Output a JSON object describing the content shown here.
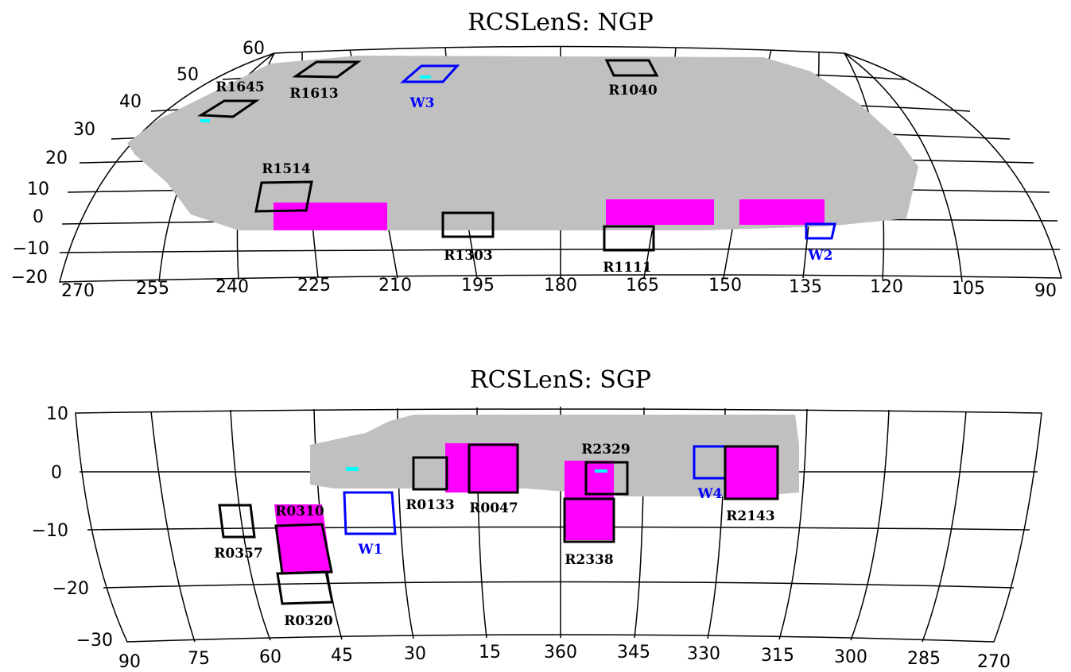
{
  "panels": [
    {
      "title": "RCSLenS: NGP",
      "dec_labels": [
        60,
        50,
        40,
        30,
        20,
        10,
        0,
        -10,
        -20
      ],
      "ra_labels": [
        270,
        255,
        240,
        225,
        210,
        195,
        180,
        165,
        150,
        135,
        120,
        105,
        90
      ],
      "fields": [
        {
          "label": "R1645",
          "color": "black"
        },
        {
          "label": "R1613",
          "color": "black"
        },
        {
          "label": "W3",
          "color": "blue"
        },
        {
          "label": "R1040",
          "color": "black"
        },
        {
          "label": "R1514",
          "color": "black"
        },
        {
          "label": "R1303",
          "color": "black"
        },
        {
          "label": "R1111",
          "color": "black"
        },
        {
          "label": "W2",
          "color": "blue"
        }
      ]
    },
    {
      "title": "RCSLenS: SGP",
      "dec_labels": [
        10,
        0,
        -10,
        -20,
        -30
      ],
      "ra_labels": [
        90,
        75,
        60,
        45,
        30,
        15,
        360,
        345,
        330,
        315,
        300,
        285,
        270
      ],
      "fields": [
        {
          "label": "R0357",
          "color": "black"
        },
        {
          "label": "R0310",
          "color": "black"
        },
        {
          "label": "W1",
          "color": "blue"
        },
        {
          "label": "R0320",
          "color": "black"
        },
        {
          "label": "R0133",
          "color": "black"
        },
        {
          "label": "R0047",
          "color": "black"
        },
        {
          "label": "R2338",
          "color": "black"
        },
        {
          "label": "R2329",
          "color": "black"
        },
        {
          "label": "W4",
          "color": "blue"
        },
        {
          "label": "R2143",
          "color": "black"
        }
      ]
    }
  ]
}
